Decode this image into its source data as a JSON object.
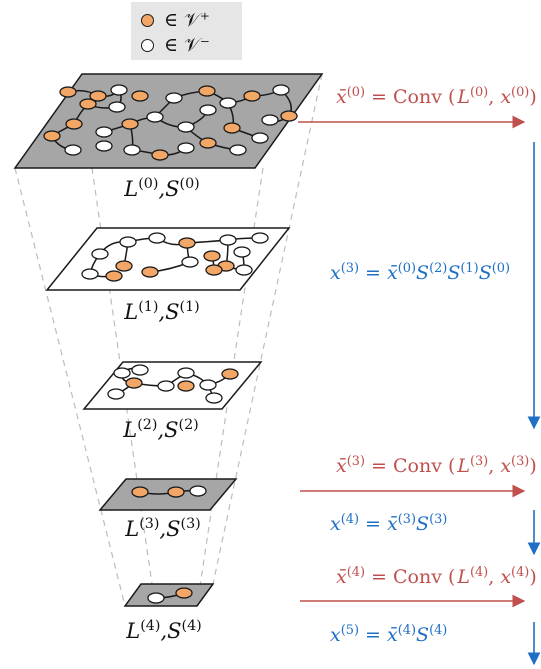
{
  "legend": {
    "positive": {
      "label": "∈ 𝒱⁺",
      "color": "#f2a766"
    },
    "negative": {
      "label": "∈ 𝒱⁻",
      "color": "#ffffff"
    }
  },
  "levels": [
    {
      "label": "L(0),S(0)",
      "fill": "#a6a6a6"
    },
    {
      "label": "L(1),S(1)",
      "fill": "#ffffff"
    },
    {
      "label": "L(2),S(2)",
      "fill": "#ffffff"
    },
    {
      "label": "L(3),S(3)",
      "fill": "#a6a6a6"
    },
    {
      "label": "L(4),S(4)",
      "fill": "#a6a6a6"
    }
  ],
  "equations": {
    "conv0": "x̄(0) = Conv (L(0), x(0))",
    "pool03": "x(3) = x̄(0)S(2)S(1)S(0)",
    "conv3": "x̄(3) = Conv (L(3), x(3))",
    "pool4": "x(4) = x̄(3)S(3)",
    "conv4": "x̄(4) = Conv (L(4), x(4))",
    "pool5": "x(5) = x̄(4)S(4)"
  },
  "colors": {
    "conv": "#c0504d",
    "pool": "#1f6fc5",
    "node_orange": "#f2a766",
    "frame_dash": "#bdbdbd"
  }
}
